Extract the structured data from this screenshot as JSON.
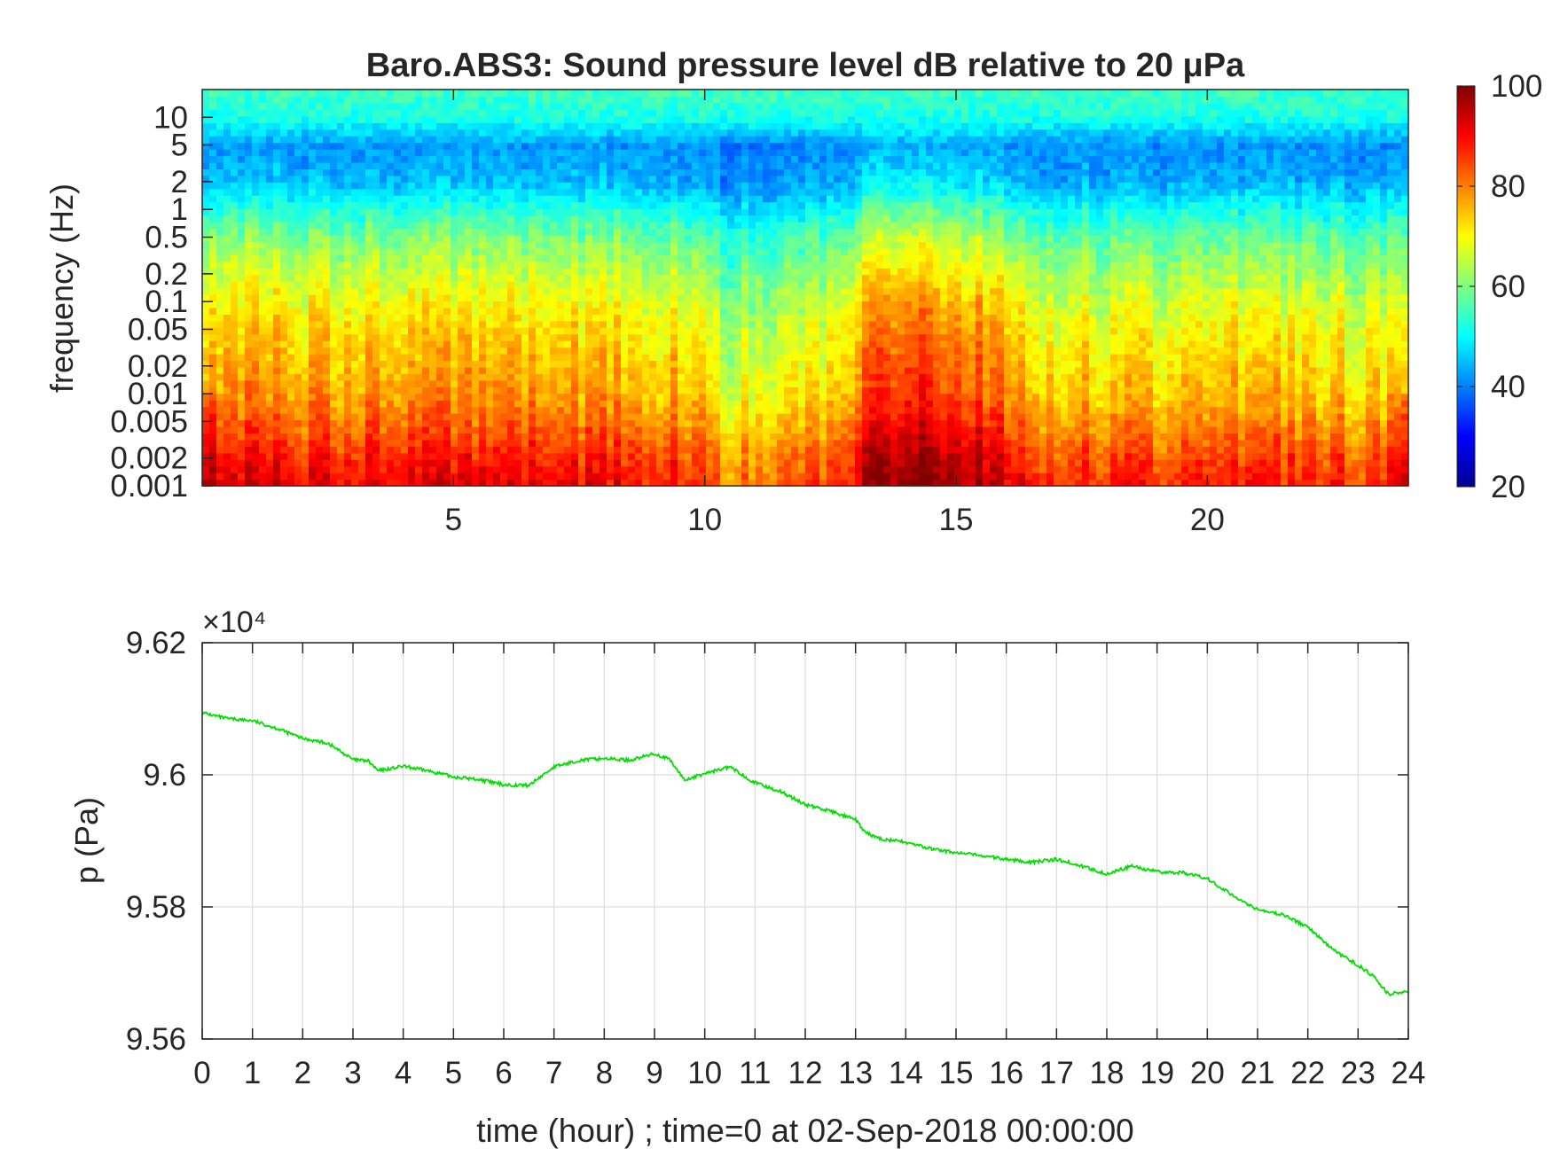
{
  "chart_data": [
    {
      "type": "heatmap",
      "title": "Baro.ABS3: Sound pressure level dB relative to 20 μPa",
      "xlabel": "",
      "ylabel": "frequency (Hz)",
      "xlim": [
        0,
        24
      ],
      "y_scale": "log",
      "ylim": [
        0.001,
        20
      ],
      "x_ticks": [
        5,
        10,
        15,
        20
      ],
      "y_ticks": [
        0.001,
        0.002,
        0.005,
        0.01,
        0.02,
        0.05,
        0.1,
        0.2,
        0.5,
        1,
        2,
        5,
        10
      ],
      "colorbar": {
        "colormap": "jet",
        "range": [
          20,
          100
        ],
        "ticks": [
          20,
          40,
          60,
          80,
          100
        ]
      },
      "level_profile_db": {
        "frequency_hz": [
          0.001,
          0.002,
          0.005,
          0.01,
          0.02,
          0.05,
          0.1,
          0.2,
          0.5,
          1,
          2,
          5,
          10,
          20
        ],
        "values": [
          91,
          88,
          82,
          78,
          76,
          73,
          70,
          66,
          60,
          53,
          45,
          42,
          52,
          55
        ]
      },
      "time_level_offset_db": {
        "time_hour": [
          0,
          2,
          4,
          6,
          8,
          9.5,
          10.5,
          11.5,
          12.5,
          13.3,
          14.5,
          15.5,
          16.5,
          18,
          19.5,
          21,
          22.5,
          24
        ],
        "values": [
          2,
          0,
          0,
          0,
          0,
          -2,
          -10,
          -8,
          -7,
          8,
          9,
          6,
          -3,
          -4,
          -3,
          -3,
          -4,
          -6
        ]
      },
      "grid": false
    },
    {
      "type": "line",
      "title": "",
      "xlabel": "time (hour) ; time=0 at 02-Sep-2018 00:00:00",
      "ylabel": "p (Pa)",
      "y_exponent_label": "×10⁴",
      "xlim": [
        0,
        24
      ],
      "ylim": [
        9.56,
        9.62
      ],
      "x_ticks": [
        0,
        1,
        2,
        3,
        4,
        5,
        6,
        7,
        8,
        9,
        10,
        11,
        12,
        13,
        14,
        15,
        16,
        17,
        18,
        19,
        20,
        21,
        22,
        23,
        24
      ],
      "y_ticks": [
        9.56,
        9.58,
        9.6,
        9.62
      ],
      "y_tick_labels": [
        "9.56",
        "9.58",
        "9.6",
        "9.62"
      ],
      "grid": true,
      "series": [
        {
          "color": "#00e000",
          "x": [
            0,
            0.5,
            1,
            1.5,
            2,
            2.5,
            3,
            3.3,
            3.5,
            4,
            4.5,
            5,
            5.5,
            6,
            6.5,
            7,
            7.5,
            8,
            8.5,
            9,
            9.3,
            9.6,
            10,
            10.5,
            11,
            11.5,
            12,
            12.5,
            13,
            13.2,
            13.5,
            14,
            14.5,
            15,
            15.5,
            16,
            16.5,
            17,
            17.5,
            18,
            18.5,
            19,
            19.5,
            20,
            20.5,
            21,
            21.5,
            22,
            22.5,
            23,
            23.3,
            23.6,
            24
          ],
          "y": [
            9.6094,
            9.6085,
            9.6082,
            9.607,
            9.6055,
            9.6048,
            9.6023,
            9.6021,
            9.6006,
            9.6013,
            9.6006,
            9.5997,
            9.5993,
            9.5985,
            9.5984,
            9.6012,
            9.6022,
            9.6025,
            9.6022,
            9.6032,
            9.6023,
            9.5992,
            9.6002,
            9.6012,
            9.5988,
            9.5975,
            9.5955,
            9.5945,
            9.5932,
            9.5912,
            9.5903,
            9.5898,
            9.5888,
            9.5882,
            9.5878,
            9.5872,
            9.5868,
            9.5872,
            9.5862,
            9.585,
            9.5862,
            9.5853,
            9.5852,
            9.5843,
            9.5818,
            9.5796,
            9.5788,
            9.577,
            9.5735,
            9.5712,
            9.5695,
            9.5668,
            9.5672
          ]
        }
      ]
    }
  ]
}
